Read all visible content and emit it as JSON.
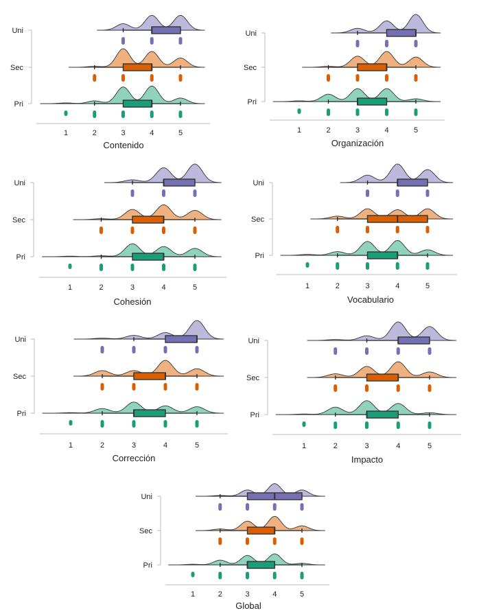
{
  "colors": {
    "Uni": {
      "box": "#7570b3",
      "fill": "#bdb9dd"
    },
    "Sec": {
      "box": "#d95f02",
      "fill": "#efb17f"
    },
    "Pri": {
      "box": "#1b9e77",
      "fill": "#90d3bc"
    },
    "outline": "#333333",
    "axis": "#bbbbbb"
  },
  "chart_data": [
    {
      "type": "raincloud",
      "xlabel": "Contenido",
      "xticks": [
        "1",
        "2",
        "3",
        "4",
        "5"
      ],
      "xlim": [
        0,
        6
      ],
      "categories": [
        "Uni",
        "Sec",
        "Pri"
      ],
      "grid": false,
      "series": [
        {
          "name": "Uni",
          "min": 3,
          "q1": 4,
          "median": 4,
          "q3": 5,
          "max": 5,
          "points": [
            3,
            4,
            5
          ],
          "density": [
            0,
            0,
            0.35,
            0.8,
            0.8
          ]
        },
        {
          "name": "Sec",
          "min": 2,
          "q1": 3,
          "median": 4,
          "q3": 4,
          "max": 5,
          "points": [
            2,
            3,
            4,
            5
          ],
          "density": [
            0,
            0.05,
            1,
            0.85,
            0.5
          ]
        },
        {
          "name": "Pri",
          "min": 2,
          "q1": 3,
          "median": 4,
          "q3": 4,
          "max": 5,
          "points": [
            1,
            2,
            3,
            4,
            5
          ],
          "density": [
            0.04,
            0.15,
            0.9,
            0.95,
            0.3
          ]
        }
      ]
    },
    {
      "type": "raincloud",
      "xlabel": "Organización",
      "xticks": [
        "1",
        "2",
        "3",
        "4",
        "5"
      ],
      "xlim": [
        0,
        6
      ],
      "categories": [
        "Uni",
        "Sec",
        "Pri"
      ],
      "grid": false,
      "series": [
        {
          "name": "Uni",
          "min": 3,
          "q1": 4,
          "median": 5,
          "q3": 5,
          "max": 5,
          "points": [
            3,
            4,
            5
          ],
          "density": [
            0,
            0,
            0.25,
            0.65,
            1
          ]
        },
        {
          "name": "Sec",
          "min": 2,
          "q1": 3,
          "median": 4,
          "q3": 4,
          "max": 5,
          "points": [
            2,
            3,
            4,
            5
          ],
          "density": [
            0,
            0.05,
            0.6,
            0.85,
            0.55
          ]
        },
        {
          "name": "Pri",
          "min": 2,
          "q1": 3,
          "median": 3,
          "q3": 4,
          "max": 5,
          "points": [
            1,
            2,
            3,
            4,
            5
          ],
          "density": [
            0.04,
            0.4,
            0.7,
            0.7,
            0.15
          ]
        }
      ]
    },
    {
      "type": "raincloud",
      "xlabel": "Cohesión",
      "xticks": [
        "1",
        "2",
        "3",
        "4",
        "5"
      ],
      "xlim": [
        0,
        6
      ],
      "categories": [
        "Uni",
        "Sec",
        "Pri"
      ],
      "grid": false,
      "series": [
        {
          "name": "Uni",
          "min": 3,
          "q1": 4,
          "median": 4,
          "q3": 5,
          "max": 5,
          "points": [
            3,
            4,
            5
          ],
          "density": [
            0,
            0,
            0.15,
            0.8,
            1
          ]
        },
        {
          "name": "Sec",
          "min": 2,
          "q1": 3,
          "median": 4,
          "q3": 4,
          "max": 5,
          "points": [
            2,
            3,
            4,
            5
          ],
          "density": [
            0,
            0.05,
            0.55,
            0.8,
            0.5
          ]
        },
        {
          "name": "Pri",
          "min": 2,
          "q1": 3,
          "median": 4,
          "q3": 4,
          "max": 5,
          "points": [
            1,
            2,
            3,
            4,
            5
          ],
          "density": [
            0.03,
            0.05,
            0.7,
            0.55,
            0.45
          ]
        }
      ]
    },
    {
      "type": "raincloud",
      "xlabel": "Vocabulario",
      "xticks": [
        "1",
        "2",
        "3",
        "4",
        "5"
      ],
      "xlim": [
        0,
        6
      ],
      "categories": [
        "Uni",
        "Sec",
        "Pri"
      ],
      "grid": false,
      "series": [
        {
          "name": "Uni",
          "min": 3,
          "q1": 4,
          "median": 4,
          "q3": 5,
          "max": 5,
          "points": [
            3,
            4,
            5
          ],
          "density": [
            0,
            0,
            0.4,
            1,
            0.7
          ]
        },
        {
          "name": "Sec",
          "min": 2,
          "q1": 3,
          "median": 4,
          "q3": 5,
          "max": 5,
          "points": [
            2,
            3,
            4,
            5
          ],
          "density": [
            0,
            0.15,
            0.55,
            0.5,
            0.55
          ]
        },
        {
          "name": "Pri",
          "min": 2,
          "q1": 3,
          "median": 4,
          "q3": 4,
          "max": 5,
          "points": [
            1,
            2,
            3,
            4,
            5
          ],
          "density": [
            0.05,
            0.2,
            0.75,
            0.8,
            0.3
          ]
        }
      ]
    },
    {
      "type": "raincloud",
      "xlabel": "Corrección",
      "xticks": [
        "1",
        "2",
        "3",
        "4",
        "5"
      ],
      "xlim": [
        0,
        6
      ],
      "categories": [
        "Uni",
        "Sec",
        "Pri"
      ],
      "grid": false,
      "series": [
        {
          "name": "Uni",
          "min": 3,
          "q1": 4,
          "median": 5,
          "q3": 5,
          "max": 5,
          "points": [
            2,
            3,
            4,
            5
          ],
          "density": [
            0,
            0.05,
            0.2,
            0.35,
            1
          ]
        },
        {
          "name": "Sec",
          "min": 2,
          "q1": 3,
          "median": 4,
          "q3": 4,
          "max": 5,
          "points": [
            2,
            3,
            4,
            5
          ],
          "density": [
            0,
            0.3,
            0.3,
            0.85,
            0.4
          ]
        },
        {
          "name": "Pri",
          "min": 2,
          "q1": 3,
          "median": 3,
          "q3": 4,
          "max": 5,
          "points": [
            1,
            2,
            3,
            4,
            5
          ],
          "density": [
            0.03,
            0.25,
            0.6,
            0.4,
            0.35
          ]
        }
      ]
    },
    {
      "type": "raincloud",
      "xlabel": "Impacto",
      "xticks": [
        "1",
        "2",
        "3",
        "4",
        "5"
      ],
      "xlim": [
        0,
        6
      ],
      "categories": [
        "Uni",
        "Sec",
        "Pri"
      ],
      "grid": false,
      "series": [
        {
          "name": "Uni",
          "min": 3,
          "q1": 4,
          "median": 4,
          "q3": 5,
          "max": 5,
          "points": [
            2,
            3,
            4,
            5
          ],
          "density": [
            0,
            0.05,
            0.25,
            1,
            0.75
          ]
        },
        {
          "name": "Sec",
          "min": 2,
          "q1": 3,
          "median": 4,
          "q3": 4,
          "max": 5,
          "points": [
            2,
            3,
            4,
            5
          ],
          "density": [
            0,
            0.2,
            0.6,
            0.85,
            0.3
          ]
        },
        {
          "name": "Pri",
          "min": 2,
          "q1": 3,
          "median": 3,
          "q3": 4,
          "max": 5,
          "points": [
            1,
            2,
            3,
            4,
            5
          ],
          "density": [
            0.03,
            0.4,
            0.75,
            0.6,
            0.1
          ]
        }
      ]
    },
    {
      "type": "raincloud",
      "xlabel": "Global",
      "xticks": [
        "1",
        "2",
        "3",
        "4",
        "5"
      ],
      "xlim": [
        0,
        6
      ],
      "categories": [
        "Uni",
        "Sec",
        "Pri"
      ],
      "grid": false,
      "series": [
        {
          "name": "Uni",
          "min": 2,
          "q1": 3,
          "median": 4,
          "q3": 5,
          "max": 5,
          "points": [
            2,
            3,
            4,
            5
          ],
          "density": [
            0,
            0.05,
            0.4,
            0.8,
            0.4
          ]
        },
        {
          "name": "Sec",
          "min": 2,
          "q1": 3,
          "median": 4,
          "q3": 4,
          "max": 5,
          "points": [
            2,
            3,
            4,
            5
          ],
          "density": [
            0,
            0.1,
            0.6,
            0.9,
            0.3
          ]
        },
        {
          "name": "Pri",
          "min": 2,
          "q1": 3,
          "median": 3,
          "q3": 4,
          "max": 5,
          "points": [
            1,
            2,
            3,
            4,
            5
          ],
          "density": [
            0.04,
            0.3,
            0.6,
            0.7,
            0.1
          ]
        }
      ]
    }
  ]
}
